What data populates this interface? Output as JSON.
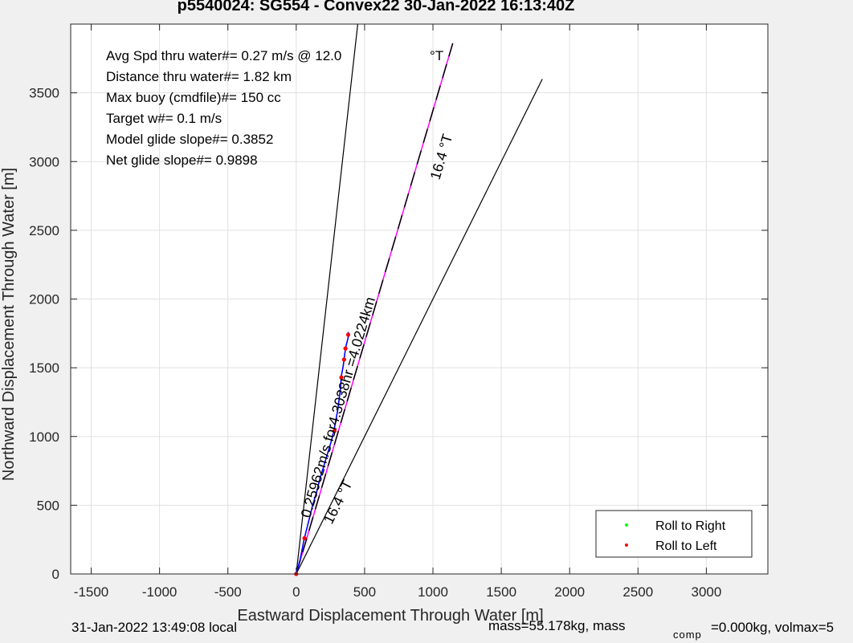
{
  "title": "p5540024: SG554 - Convex22 30-Jan-2022 16:13:40Z",
  "footer": {
    "local_time": "31-Jan-2022 13:49:08 local",
    "mass_text": "mass=55.178kg, mass",
    "comp_sub": "comp",
    "mass_comp_text": "=0.000kg, volmax=5"
  },
  "colors": {
    "background": "#f0f0f0",
    "axes_bg": "#ffffff",
    "grid": "#e1e1e1",
    "track": "#0000ff",
    "magenta_line": "#ff00ff",
    "dashed_line": "#000000",
    "roll_right": "#00ff00",
    "roll_left": "#ff0000",
    "dive_marker": "#ff0000"
  },
  "chart_data": {
    "type": "line",
    "xlabel": "Eastward Displacement Through Water [m]",
    "ylabel": "Northward Displacement Through Water [m]",
    "xlim": [
      -1650,
      3450
    ],
    "ylim": [
      0,
      4000
    ],
    "xticks": [
      -1500,
      -1000,
      -500,
      0,
      500,
      1000,
      1500,
      2000,
      2500,
      3000
    ],
    "yticks": [
      0,
      500,
      1000,
      1500,
      2000,
      2500,
      3000,
      3500
    ],
    "grid": true,
    "legend": {
      "location": "bottom-right",
      "entries": [
        "Roll to Right",
        "Roll to Left"
      ]
    },
    "info_lines": [
      "Avg Spd thru water#=  0.27 m/s @  12.0",
      "Distance thru water#=  1.82 km",
      "Max buoy (cmdfile)#= 150 cc",
      "Target w#= 0.1 m/s",
      "Model glide slope#= 0.3852",
      "Net glide slope#= 0.9898"
    ],
    "info_degT": "°T",
    "annotations": {
      "heading_line": "16.4 °T",
      "target_line": "16.4 °T",
      "speed_label": "0.25962m/s for4.3038hr =4.0224km"
    },
    "lines": {
      "target_magenta": [
        [
          0,
          0
        ],
        [
          1145,
          3860
        ]
      ],
      "heading_dashed": [
        [
          0,
          0
        ],
        [
          1145,
          3860
        ]
      ],
      "bound_left": [
        [
          0,
          0
        ],
        [
          450,
          4000
        ]
      ],
      "bound_right": [
        [
          0,
          0
        ],
        [
          1800,
          3600
        ]
      ]
    },
    "track": [
      [
        0,
        0
      ],
      [
        30,
        110
      ],
      [
        55,
        240
      ],
      [
        70,
        300
      ],
      [
        95,
        400
      ],
      [
        120,
        500
      ],
      [
        150,
        600
      ],
      [
        175,
        700
      ],
      [
        200,
        780
      ],
      [
        230,
        880
      ],
      [
        255,
        960
      ],
      [
        275,
        1040
      ],
      [
        290,
        1120
      ],
      [
        305,
        1200
      ],
      [
        315,
        1280
      ],
      [
        325,
        1360
      ],
      [
        330,
        1440
      ],
      [
        345,
        1520
      ],
      [
        355,
        1600
      ],
      [
        365,
        1660
      ],
      [
        375,
        1700
      ],
      [
        385,
        1740
      ],
      [
        380,
        1760
      ]
    ],
    "dive_points": [
      [
        0,
        0
      ],
      [
        60,
        260
      ],
      [
        280,
        1040
      ],
      [
        330,
        1430
      ],
      [
        350,
        1560
      ],
      [
        360,
        1640
      ],
      [
        380,
        1740
      ]
    ]
  }
}
